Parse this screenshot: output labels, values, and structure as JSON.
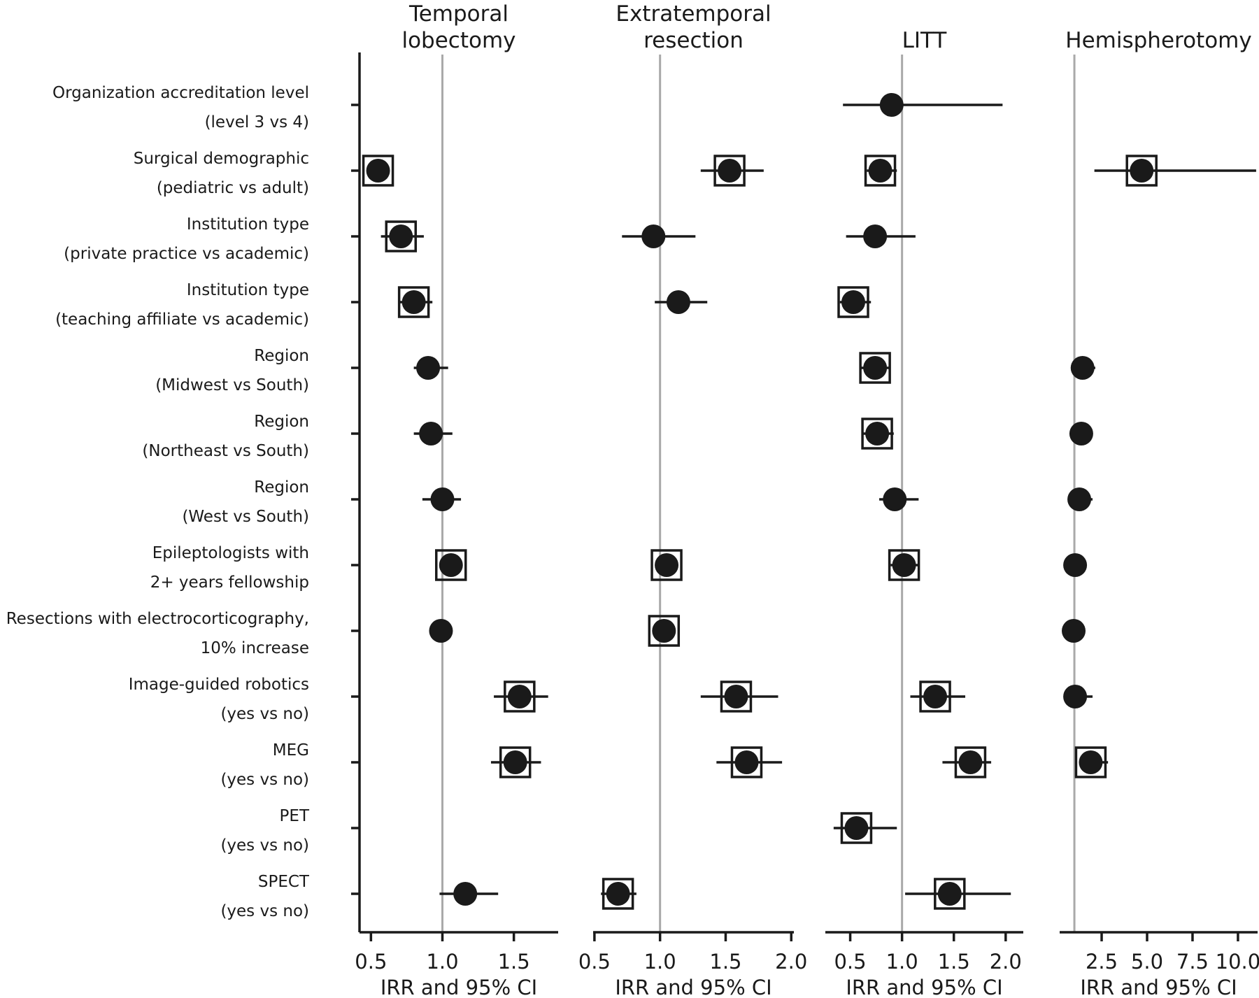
{
  "figure_title": "",
  "colors": {
    "marker": "#1a1a1a",
    "axis": "#1a1a1a",
    "reference_line": "#a9a9a9",
    "text": "#1a1a1a"
  },
  "chart_data": {
    "type": "forest",
    "x_axis_label": "IRR and 95% CI",
    "reference_value": 1.0,
    "scale": "linear",
    "rows": [
      {
        "label_line1": "Organization accreditation level",
        "label_line2": "(level 3 vs 4)"
      },
      {
        "label_line1": "Surgical demographic",
        "label_line2": "(pediatric vs adult)"
      },
      {
        "label_line1": "Institution type",
        "label_line2": "(private practice vs academic)"
      },
      {
        "label_line1": "Institution type",
        "label_line2": "(teaching affiliate vs academic)"
      },
      {
        "label_line1": "Region",
        "label_line2": "(Midwest vs South)"
      },
      {
        "label_line1": "Region",
        "label_line2": "(Northeast vs South)"
      },
      {
        "label_line1": "Region",
        "label_line2": "(West vs South)"
      },
      {
        "label_line1": "Epileptologists with",
        "label_line2": "2+ years fellowship"
      },
      {
        "label_line1": "Resections with electrocorticography,",
        "label_line2": "10% increase"
      },
      {
        "label_line1": "Image-guided robotics",
        "label_line2": "(yes vs no)"
      },
      {
        "label_line1": "MEG",
        "label_line2": "(yes vs no)"
      },
      {
        "label_line1": "PET",
        "label_line2": "(yes vs no)"
      },
      {
        "label_line1": "SPECT",
        "label_line2": "(yes vs no)"
      }
    ],
    "panels": [
      {
        "title_lines": [
          "Temporal",
          "lobectomy"
        ],
        "xlabel": "IRR and 95% CI",
        "xlim": [
          0.42,
          1.81
        ],
        "ticks": [
          0.5,
          1.0,
          1.5
        ],
        "has_left_spine": true,
        "estimates": [
          null,
          {
            "irr": 0.55,
            "lo": 0.48,
            "hi": 0.62,
            "significant": true
          },
          {
            "irr": 0.71,
            "lo": 0.57,
            "hi": 0.87,
            "significant": true
          },
          {
            "irr": 0.8,
            "lo": 0.69,
            "hi": 0.93,
            "significant": true
          },
          {
            "irr": 0.9,
            "lo": 0.8,
            "hi": 1.04,
            "significant": false
          },
          {
            "irr": 0.92,
            "lo": 0.8,
            "hi": 1.07,
            "significant": false
          },
          {
            "irr": 1.0,
            "lo": 0.86,
            "hi": 1.13,
            "significant": false
          },
          {
            "irr": 1.06,
            "lo": 1.0,
            "hi": 1.13,
            "significant": true
          },
          {
            "irr": 0.99,
            "lo": 0.97,
            "hi": 1.01,
            "significant": false
          },
          {
            "irr": 1.54,
            "lo": 1.36,
            "hi": 1.74,
            "significant": true
          },
          {
            "irr": 1.51,
            "lo": 1.34,
            "hi": 1.69,
            "significant": true
          },
          null,
          {
            "irr": 1.16,
            "lo": 0.98,
            "hi": 1.39,
            "significant": false
          }
        ]
      },
      {
        "title_lines": [
          "Extratemporal",
          "resection"
        ],
        "xlabel": "IRR and 95% CI",
        "xlim": [
          0.49,
          2.02
        ],
        "ticks": [
          0.5,
          1.0,
          1.5,
          2.0
        ],
        "has_left_spine": false,
        "estimates": [
          null,
          {
            "irr": 1.53,
            "lo": 1.31,
            "hi": 1.79,
            "significant": true
          },
          {
            "irr": 0.95,
            "lo": 0.71,
            "hi": 1.27,
            "significant": false
          },
          {
            "irr": 1.14,
            "lo": 0.96,
            "hi": 1.36,
            "significant": false
          },
          null,
          null,
          null,
          {
            "irr": 1.05,
            "lo": 0.98,
            "hi": 1.12,
            "significant": true
          },
          {
            "irr": 1.03,
            "lo": 1.0,
            "hi": 1.06,
            "significant": true
          },
          {
            "irr": 1.58,
            "lo": 1.31,
            "hi": 1.9,
            "significant": true
          },
          {
            "irr": 1.66,
            "lo": 1.43,
            "hi": 1.93,
            "significant": true
          },
          null,
          {
            "irr": 0.68,
            "lo": 0.55,
            "hi": 0.82,
            "significant": true
          }
        ]
      },
      {
        "title_lines": [
          "LITT"
        ],
        "xlabel": "IRR and 95% CI",
        "xlim": [
          0.26,
          2.17
        ],
        "ticks": [
          0.5,
          1.0,
          1.5,
          2.0
        ],
        "has_left_spine": false,
        "estimates": [
          {
            "irr": 0.9,
            "lo": 0.43,
            "hi": 1.97,
            "significant": false
          },
          {
            "irr": 0.79,
            "lo": 0.66,
            "hi": 0.95,
            "significant": true
          },
          {
            "irr": 0.74,
            "lo": 0.46,
            "hi": 1.13,
            "significant": false
          },
          {
            "irr": 0.53,
            "lo": 0.4,
            "hi": 0.7,
            "significant": true
          },
          {
            "irr": 0.74,
            "lo": 0.6,
            "hi": 0.89,
            "significant": true
          },
          {
            "irr": 0.76,
            "lo": 0.62,
            "hi": 0.92,
            "significant": true
          },
          {
            "irr": 0.93,
            "lo": 0.78,
            "hi": 1.16,
            "significant": false
          },
          {
            "irr": 1.02,
            "lo": 0.89,
            "hi": 1.17,
            "significant": true
          },
          null,
          {
            "irr": 1.32,
            "lo": 1.08,
            "hi": 1.61,
            "significant": true
          },
          {
            "irr": 1.66,
            "lo": 1.39,
            "hi": 1.86,
            "significant": true
          },
          {
            "irr": 0.56,
            "lo": 0.34,
            "hi": 0.95,
            "significant": true
          },
          {
            "irr": 1.46,
            "lo": 1.03,
            "hi": 2.05,
            "significant": true
          }
        ]
      },
      {
        "title_lines": [
          "Hemispherotomy"
        ],
        "xlabel": "IRR and 95% CI",
        "xlim": [
          0.19,
          11.08
        ],
        "ticks": [
          2.5,
          5.0,
          7.5,
          10.0
        ],
        "has_left_spine": false,
        "estimates": [
          null,
          {
            "irr": 4.7,
            "lo": 2.1,
            "hi": 11.0,
            "significant": true
          },
          null,
          null,
          {
            "irr": 1.45,
            "lo": 1.05,
            "hi": 2.15,
            "significant": false
          },
          {
            "irr": 1.38,
            "lo": 1.0,
            "hi": 1.9,
            "significant": false
          },
          {
            "irr": 1.27,
            "lo": 0.95,
            "hi": 2.0,
            "significant": false
          },
          {
            "irr": 1.04,
            "lo": 0.92,
            "hi": 1.2,
            "significant": false
          },
          {
            "irr": 0.96,
            "lo": 0.88,
            "hi": 1.05,
            "significant": false
          },
          {
            "irr": 1.04,
            "lo": 0.8,
            "hi": 2.0,
            "significant": false
          },
          {
            "irr": 1.9,
            "lo": 1.35,
            "hi": 2.85,
            "significant": true
          },
          null,
          null
        ]
      }
    ]
  }
}
